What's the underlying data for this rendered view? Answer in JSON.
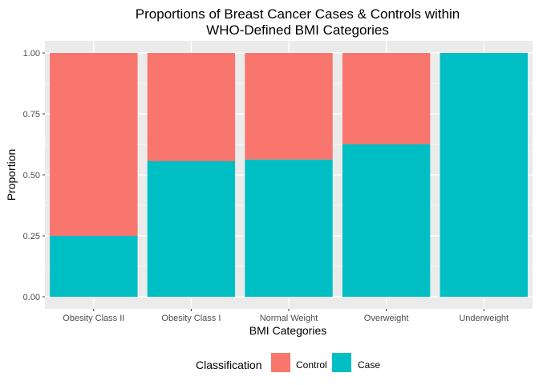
{
  "chart_data": {
    "type": "bar",
    "stacked": true,
    "title_line1": "Proportions of Breast Cancer Cases & Controls within",
    "title_line2": "WHO-Defined BMI Categories",
    "xlabel": "BMI Categories",
    "ylabel": "Proportion",
    "ylim": [
      0,
      1
    ],
    "yticks": [
      0,
      0.25,
      0.5,
      0.75,
      1
    ],
    "ytick_labels": [
      "0.00",
      "0.25",
      "0.50",
      "0.75",
      "1.00"
    ],
    "categories": [
      "Obesity Class II",
      "Obesity Class I",
      "Normal Weight",
      "Overweight",
      "Underweight"
    ],
    "series": [
      {
        "name": "Case",
        "color": "#00BFC4",
        "values": [
          0.25,
          0.556,
          0.563,
          0.625,
          1.0
        ]
      },
      {
        "name": "Control",
        "color": "#F8766D",
        "values": [
          0.75,
          0.444,
          0.437,
          0.375,
          0.0
        ]
      }
    ],
    "legend": {
      "title": "Classification",
      "position": "bottom",
      "entries": [
        {
          "label": "Control",
          "color": "#F8766D"
        },
        {
          "label": "Case",
          "color": "#00BFC4"
        }
      ]
    },
    "grid": true,
    "panel_background": "#EBEBEB"
  }
}
